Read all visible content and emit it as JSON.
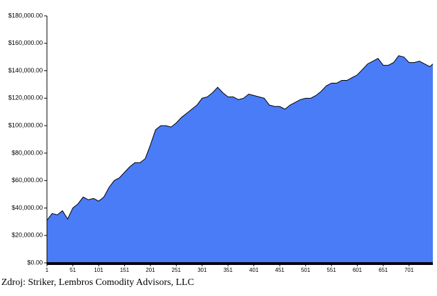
{
  "chart_data": {
    "type": "area",
    "x": [
      1,
      11,
      21,
      31,
      41,
      51,
      61,
      71,
      81,
      91,
      101,
      111,
      121,
      131,
      141,
      151,
      161,
      171,
      181,
      191,
      201,
      211,
      221,
      231,
      241,
      251,
      261,
      271,
      281,
      291,
      301,
      311,
      321,
      331,
      341,
      351,
      361,
      371,
      381,
      391,
      401,
      411,
      421,
      431,
      441,
      451,
      461,
      471,
      481,
      491,
      501,
      511,
      521,
      531,
      541,
      551,
      561,
      571,
      581,
      591,
      601,
      611,
      621,
      631,
      641,
      651,
      661,
      671,
      681,
      691,
      701,
      711,
      721,
      731,
      741,
      747
    ],
    "values": [
      31000,
      36000,
      35000,
      38000,
      32000,
      40000,
      43000,
      48000,
      46000,
      47000,
      45000,
      48000,
      55000,
      60000,
      62000,
      66000,
      70000,
      73000,
      73000,
      76000,
      86000,
      97000,
      100000,
      100000,
      99000,
      102000,
      106000,
      109000,
      112000,
      115000,
      120000,
      121000,
      124000,
      128000,
      124000,
      121000,
      121000,
      119000,
      120000,
      123000,
      122000,
      121000,
      120000,
      115000,
      114000,
      114000,
      112000,
      115000,
      117000,
      119000,
      120000,
      120000,
      122000,
      125000,
      129000,
      131000,
      131000,
      133000,
      133000,
      135000,
      137000,
      141000,
      145000,
      147000,
      149000,
      144000,
      144000,
      146000,
      151000,
      150000,
      146000,
      146000,
      147000,
      145000,
      143000,
      145000
    ],
    "color": "#4a7cf7",
    "xlim": [
      1,
      747
    ],
    "xticks": [
      1,
      51,
      101,
      151,
      201,
      251,
      301,
      351,
      401,
      451,
      501,
      551,
      601,
      651,
      701
    ],
    "ylim": [
      0,
      180000
    ],
    "yticks": [
      {
        "value": 0,
        "label": "$0.00"
      },
      {
        "value": 20000,
        "label": "$20,000.00"
      },
      {
        "value": 40000,
        "label": "$40,000.00"
      },
      {
        "value": 60000,
        "label": "$60,000.00"
      },
      {
        "value": 80000,
        "label": "$80,000.00"
      },
      {
        "value": 100000,
        "label": "$100,000.00"
      },
      {
        "value": 120000,
        "label": "$120,000.00"
      },
      {
        "value": 140000,
        "label": "$140,000.00"
      },
      {
        "value": 160000,
        "label": "$160,000.00"
      },
      {
        "value": 180000,
        "label": "$180,000.00"
      }
    ],
    "caption": "Zdroj: Striker, Lembros Comodity Advisors, LLC"
  }
}
